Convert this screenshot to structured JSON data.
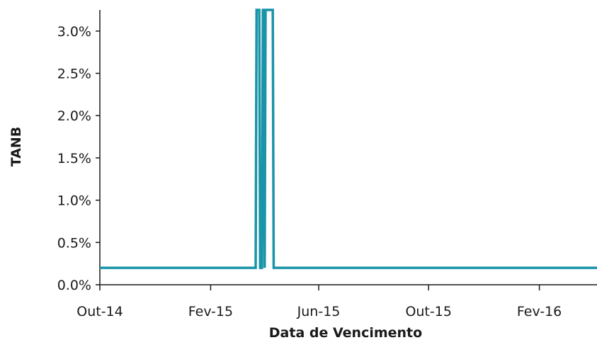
{
  "chart_data": {
    "type": "line",
    "title": "",
    "xlabel": "Data de Vencimento",
    "ylabel": "TANB",
    "x_ticks": [
      {
        "date": "2014-10-01",
        "label": "Out-14"
      },
      {
        "date": "2015-02-01",
        "label": "Fev-15"
      },
      {
        "date": "2015-06-01",
        "label": "Jun-15"
      },
      {
        "date": "2015-10-01",
        "label": "Out-15"
      },
      {
        "date": "2016-02-01",
        "label": "Fev-16"
      }
    ],
    "xlim": [
      "2014-10-01",
      "2016-04-05"
    ],
    "y_ticks": [
      {
        "value": 0.0,
        "label": "0.0%"
      },
      {
        "value": 0.5,
        "label": "0.5%"
      },
      {
        "value": 1.0,
        "label": "1.0%"
      },
      {
        "value": 1.5,
        "label": "1.5%"
      },
      {
        "value": 2.0,
        "label": "2.0%"
      },
      {
        "value": 2.5,
        "label": "2.5%"
      },
      {
        "value": 3.0,
        "label": "3.0%"
      }
    ],
    "ylim": [
      0,
      3.25
    ],
    "grid": false,
    "series": [
      {
        "color": "#1a94a8",
        "points": [
          {
            "x": "2014-10-01",
            "y": 0.2
          },
          {
            "x": "2015-03-23",
            "y": 0.2
          },
          {
            "x": "2015-03-24",
            "y": 3.25
          },
          {
            "x": "2015-03-27",
            "y": 3.25
          },
          {
            "x": "2015-03-28",
            "y": 0.2
          },
          {
            "x": "2015-03-30",
            "y": 0.2
          },
          {
            "x": "2015-03-31",
            "y": 3.25
          },
          {
            "x": "2015-04-01",
            "y": 3.25
          },
          {
            "x": "2015-04-02",
            "y": 0.2
          },
          {
            "x": "2015-04-03",
            "y": 3.25
          },
          {
            "x": "2015-04-11",
            "y": 3.25
          },
          {
            "x": "2015-04-12",
            "y": 0.2
          },
          {
            "x": "2016-04-05",
            "y": 0.2
          }
        ]
      }
    ]
  }
}
